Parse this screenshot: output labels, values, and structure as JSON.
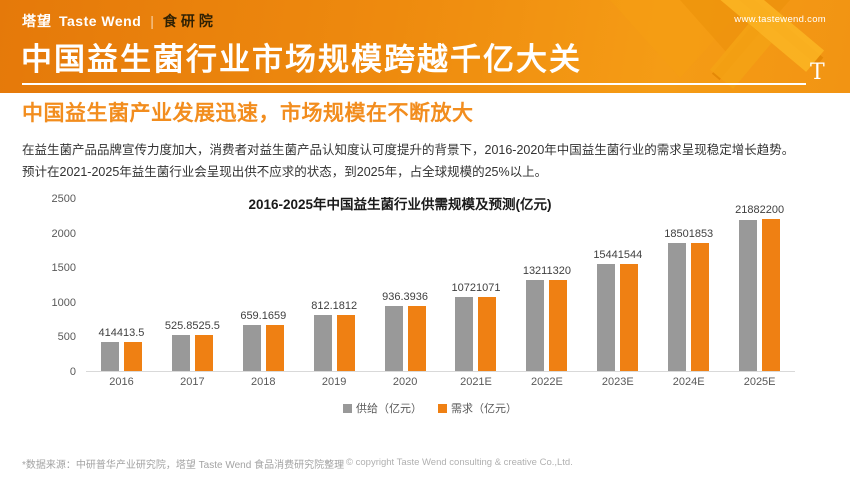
{
  "header": {
    "brand": {
      "cn": "塔望",
      "en": "Taste Wend",
      "divider": "|",
      "sub": "食研院"
    },
    "website": "www.tastewend.com",
    "title": "中国益生菌行业市场规模跨越千亿大关",
    "t_mark": "T"
  },
  "section": {
    "heading": "中国益生菌产业发展迅速，市场规模在不断放大",
    "paragraphs": [
      "在益生菌产品品牌宣传力度加大，消费者对益生菌产品认知度认可度提升的背景下，2016-2020年中国益生菌行业的需求呈现稳定增长趋势。",
      "预计在2021-2025年益生菌行业会呈现出供不应求的状态，到2025年，占全球规模的25%以上。"
    ]
  },
  "chart_data": {
    "type": "bar",
    "title": "2016-2025年中国益生菌行业供需规模及预测(亿元)",
    "categories": [
      "2016",
      "2017",
      "2018",
      "2019",
      "2020",
      "2021E",
      "2022E",
      "2023E",
      "2024E",
      "2025E"
    ],
    "series": [
      {
        "name": "供给（亿元）",
        "color": "#999999",
        "values": [
          414,
          525.8,
          659.1,
          812.1,
          936.3,
          1072,
          1321,
          1544,
          1850,
          2188
        ],
        "labels": [
          "414",
          "525.8",
          "659.1",
          "812.1",
          "936.3",
          "1072",
          "1321",
          "1544",
          "1850",
          "2188"
        ]
      },
      {
        "name": "需求（亿元）",
        "color": "#ef8013",
        "values": [
          413.5,
          525.5,
          659,
          812,
          936,
          1071,
          1320,
          1544,
          1853,
          2200
        ],
        "labels": [
          "413.5",
          "525.5",
          "659",
          "812",
          "936",
          "1071",
          "1320",
          "1544",
          "1853",
          "2200"
        ]
      }
    ],
    "xlabel": "",
    "ylabel": "",
    "ylim": [
      0,
      2500
    ],
    "yticks": [
      0,
      500,
      1000,
      1500,
      2000,
      2500
    ],
    "grid": false,
    "legend_position": "bottom"
  },
  "footer": {
    "source": "*数据来源：中研普华产业研究院，塔望 Taste Wend 食品消费研究院整理",
    "copyright": "© copyright Taste Wend consulting & creative Co.,Ltd."
  },
  "colors": {
    "header_orange": "#ee8a0e",
    "accent_orange": "#f28d1e",
    "bar_gray": "#999999",
    "bar_orange": "#ef8013"
  }
}
